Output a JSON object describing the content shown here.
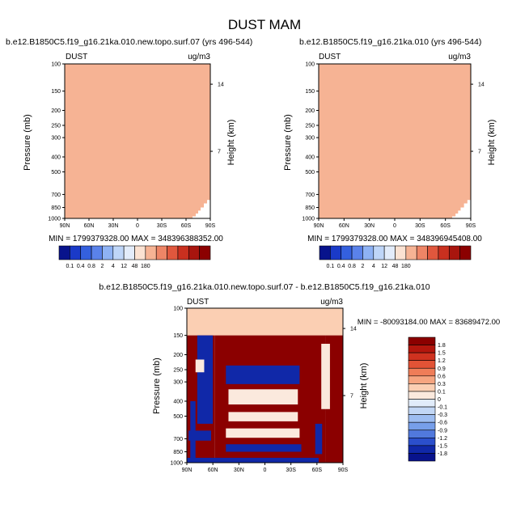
{
  "figure": {
    "title": "DUST MAM"
  },
  "panels": [
    {
      "id": "top-left",
      "title": "b.e12.B1850C5.f19_g16.21ka.010.new.topo.surf.07 (yrs 496-544)",
      "left_label": "DUST",
      "right_label": "ug/m3",
      "ylabel": "Pressure (mb)",
      "ylabel_right": "Height (km)",
      "stats": "MIN = 1799379328.00   MAX = 348396388352.00"
    },
    {
      "id": "top-right",
      "title": "b.e12.B1850C5.f19_g16.21ka.010 (yrs 496-544)",
      "left_label": "DUST",
      "right_label": "ug/m3",
      "ylabel": "Pressure (mb)",
      "ylabel_right": "Height (km)",
      "stats": "MIN = 1799379328.00   MAX = 348396945408.00"
    },
    {
      "id": "bottom",
      "title": "b.e12.B1850C5.f19_g16.21ka.010.new.topo.surf.07 - b.e12.B1850C5.f19_g16.21ka.010",
      "left_label": "DUST",
      "right_label": "ug/m3",
      "ylabel": "Pressure (mb)",
      "ylabel_right": "Height (km)",
      "stats": "MIN = -80093184.00   MAX = 83689472.00"
    }
  ],
  "chart_data": [
    {
      "type": "heatmap",
      "panel": "top-left",
      "title": "b.e12.B1850C5.f19_g16.21ka.010.new.topo.surf.07 (yrs 496-544)",
      "x_ticks": [
        "90N",
        "60N",
        "30N",
        "0",
        "30S",
        "60S",
        "90S"
      ],
      "x_tick_values": [
        90,
        60,
        30,
        0,
        -30,
        -60,
        -90
      ],
      "y_ticks": [
        "100",
        "150",
        "200",
        "250",
        "300",
        "400",
        "500",
        "700",
        "850",
        "1000"
      ],
      "y_tick_values": [
        100,
        150,
        200,
        250,
        300,
        400,
        500,
        700,
        850,
        1000
      ],
      "y_scale": "log",
      "ylim": [
        1000,
        100
      ],
      "height_ticks": [
        "14",
        "7"
      ],
      "height_tick_values": [
        14,
        7
      ],
      "ylabel": "Pressure (mb)",
      "ylabel_right": "Height (km)",
      "min": 1799379328.0,
      "max": 348396388352.0,
      "field_level": 180,
      "terrain_lat": [
        -66,
        -68,
        -72,
        -75,
        -78,
        -82,
        -86,
        -90
      ],
      "terrain_p": [
        1000,
        970,
        930,
        890,
        850,
        800,
        760,
        720
      ],
      "colorbar": {
        "labels": [
          "0.1",
          "0.4",
          "0.8",
          "2",
          "4",
          "12",
          "48",
          "180"
        ],
        "colors": [
          "#08138c",
          "#1a3ac8",
          "#3460de",
          "#5a82ea",
          "#8eb2f4",
          "#bfd6f8",
          "#e3ecfa",
          "#fbe2d2",
          "#f6b394",
          "#ee8566",
          "#e0573d",
          "#c9301f",
          "#a8150e",
          "#8b0000"
        ]
      }
    },
    {
      "type": "heatmap",
      "panel": "top-right",
      "title": "b.e12.B1850C5.f19_g16.21ka.010 (yrs 496-544)",
      "x_ticks": [
        "90N",
        "60N",
        "30N",
        "0",
        "30S",
        "60S",
        "90S"
      ],
      "x_tick_values": [
        90,
        60,
        30,
        0,
        -30,
        -60,
        -90
      ],
      "y_ticks": [
        "100",
        "150",
        "200",
        "250",
        "300",
        "400",
        "500",
        "700",
        "850",
        "1000"
      ],
      "y_tick_values": [
        100,
        150,
        200,
        250,
        300,
        400,
        500,
        700,
        850,
        1000
      ],
      "y_scale": "log",
      "ylim": [
        1000,
        100
      ],
      "height_ticks": [
        "14",
        "7"
      ],
      "height_tick_values": [
        14,
        7
      ],
      "ylabel": "Pressure (mb)",
      "ylabel_right": "Height (km)",
      "min": 1799379328.0,
      "max": 348396945408.0,
      "field_level": 180,
      "terrain_lat": [
        -66,
        -68,
        -72,
        -75,
        -78,
        -82,
        -86,
        -90
      ],
      "terrain_p": [
        1000,
        970,
        930,
        890,
        850,
        800,
        760,
        720
      ],
      "colorbar": {
        "labels": [
          "0.1",
          "0.4",
          "0.8",
          "2",
          "4",
          "12",
          "48",
          "180"
        ],
        "colors": [
          "#08138c",
          "#1a3ac8",
          "#3460de",
          "#5a82ea",
          "#8eb2f4",
          "#bfd6f8",
          "#e3ecfa",
          "#fbe2d2",
          "#f6b394",
          "#ee8566",
          "#e0573d",
          "#c9301f",
          "#a8150e",
          "#8b0000"
        ]
      }
    },
    {
      "type": "heatmap",
      "panel": "bottom",
      "title": "b.e12.B1850C5.f19_g16.21ka.010.new.topo.surf.07 - b.e12.B1850C5.f19_g16.21ka.010",
      "x_ticks": [
        "90N",
        "60N",
        "30N",
        "0",
        "30S",
        "60S",
        "90S"
      ],
      "x_tick_values": [
        90,
        60,
        30,
        0,
        -30,
        -60,
        -90
      ],
      "y_ticks": [
        "100",
        "150",
        "200",
        "250",
        "300",
        "400",
        "500",
        "700",
        "850",
        "1000"
      ],
      "y_tick_values": [
        100,
        150,
        200,
        250,
        300,
        400,
        500,
        700,
        850,
        1000
      ],
      "y_scale": "log",
      "ylim": [
        1000,
        100
      ],
      "height_ticks": [
        "14",
        "7"
      ],
      "height_tick_values": [
        14,
        7
      ],
      "ylabel": "Pressure (mb)",
      "ylabel_right": "Height (km)",
      "min": -80093184.0,
      "max": 83689472.0,
      "regions": [
        {
          "lat": [
            90,
            -90
          ],
          "p": [
            150,
            100
          ],
          "level": 0.1
        },
        {
          "lat": [
            90,
            58
          ],
          "p": [
            1000,
            150
          ],
          "level": 1.8
        },
        {
          "lat": [
            -70,
            -90
          ],
          "p": [
            1000,
            150
          ],
          "level": 1.8
        },
        {
          "lat": [
            58,
            -70
          ],
          "p": [
            1000,
            150
          ],
          "level": 1.8
        },
        {
          "lat": [
            78,
            60
          ],
          "p": [
            560,
            150
          ],
          "level": -1.8
        },
        {
          "lat": [
            45,
            -40
          ],
          "p": [
            310,
            235
          ],
          "level": -1.8
        },
        {
          "lat": [
            42,
            -38
          ],
          "p": [
            420,
            335
          ],
          "level": 0
        },
        {
          "lat": [
            42,
            -38
          ],
          "p": [
            540,
            470
          ],
          "level": 0
        },
        {
          "lat": [
            45,
            -40
          ],
          "p": [
            690,
            600
          ],
          "level": 0
        },
        {
          "lat": [
            45,
            -42
          ],
          "p": [
            850,
            760
          ],
          "level": -1.8
        },
        {
          "lat": [
            90,
            -62
          ],
          "p": [
            1000,
            930
          ],
          "level": -1.8
        },
        {
          "lat": [
            80,
            70
          ],
          "p": [
            260,
            215
          ],
          "level": 0
        },
        {
          "lat": [
            -65,
            -75
          ],
          "p": [
            450,
            170
          ],
          "level": 0
        },
        {
          "lat": [
            88,
            62
          ],
          "p": [
            720,
            620
          ],
          "level": -1.8
        },
        {
          "lat": [
            -58,
            -66
          ],
          "p": [
            880,
            560
          ],
          "level": -1.8
        },
        {
          "lat": [
            86,
            80
          ],
          "p": [
            1000,
            400
          ],
          "level": -1.8
        }
      ],
      "colorbar": {
        "labels": [
          "1.8",
          "1.5",
          "1.2",
          "0.9",
          "0.6",
          "0.3",
          "0.1",
          "0",
          "-0.1",
          "-0.3",
          "-0.6",
          "-0.9",
          "-1.2",
          "-1.5",
          "-1.8"
        ],
        "colors": [
          "#8b0000",
          "#b3160d",
          "#cf321f",
          "#e25336",
          "#ef7d58",
          "#f6a580",
          "#fbcfb3",
          "#fbe9dd",
          "#e1ecfa",
          "#c2d7f5",
          "#9dbdf1",
          "#779fea",
          "#5179dd",
          "#2b4fcc",
          "#1028a8",
          "#08138c"
        ]
      }
    }
  ]
}
